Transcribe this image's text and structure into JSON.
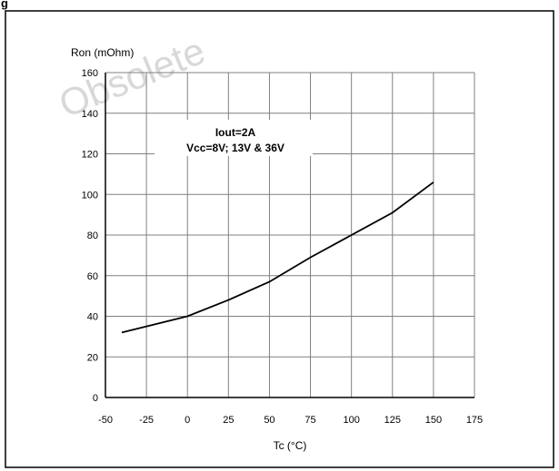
{
  "header": {
    "fragment": "g"
  },
  "watermark": {
    "text": "Obsolete"
  },
  "chart_data": {
    "type": "line",
    "title": "",
    "xlabel": "Tc (°C)",
    "ylabel": "Ron (mOhm)",
    "xlim": [
      -50,
      175
    ],
    "ylim": [
      0,
      160
    ],
    "x_ticks": [
      -50,
      -25,
      0,
      25,
      50,
      75,
      100,
      125,
      150,
      175
    ],
    "y_ticks": [
      0,
      20,
      40,
      60,
      80,
      100,
      120,
      140,
      160
    ],
    "grid": true,
    "annotations": [
      "Iout=2A",
      "Vcc=8V; 13V & 36V"
    ],
    "series": [
      {
        "x": [
          -40,
          0,
          25,
          50,
          75,
          100,
          125,
          150
        ],
        "y": [
          32,
          40,
          48,
          57,
          69,
          80,
          91,
          106
        ]
      }
    ]
  }
}
